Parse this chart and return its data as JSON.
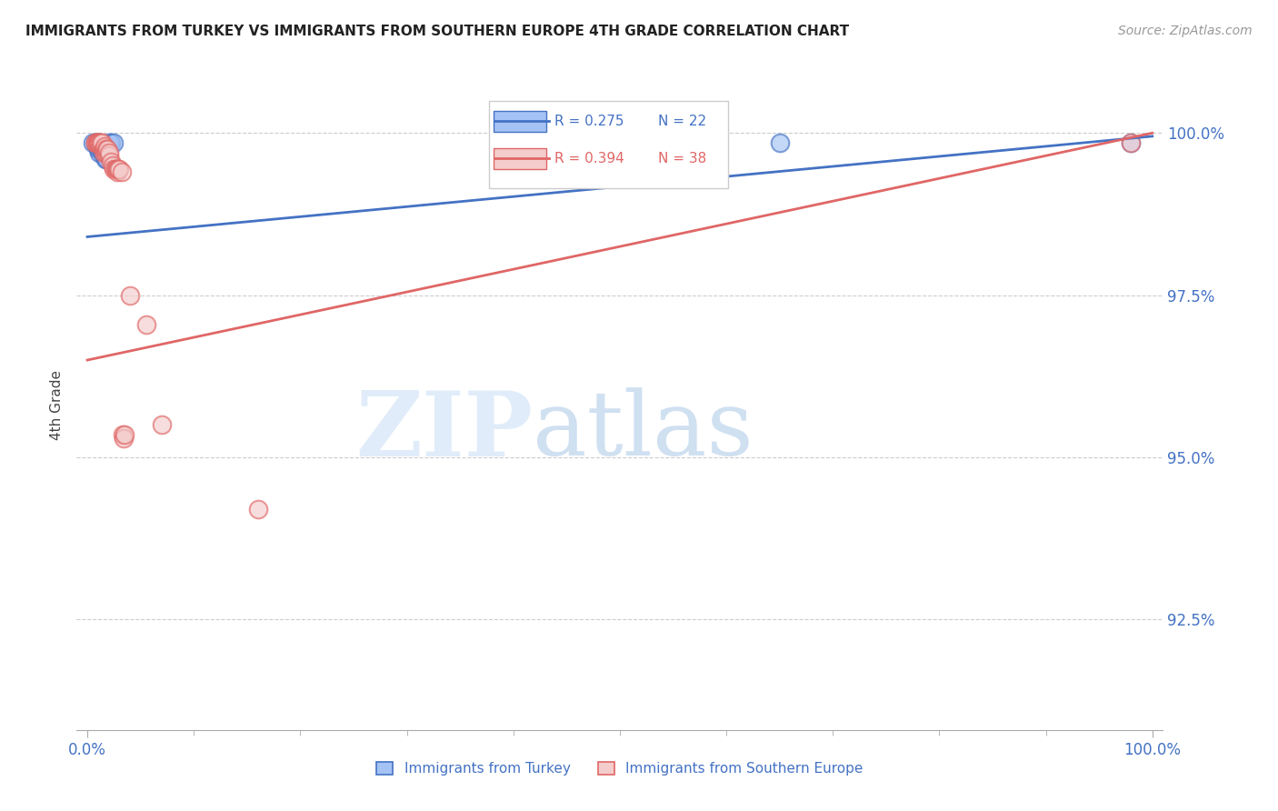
{
  "title": "IMMIGRANTS FROM TURKEY VS IMMIGRANTS FROM SOUTHERN EUROPE 4TH GRADE CORRELATION CHART",
  "source": "Source: ZipAtlas.com",
  "ylabel": "4th Grade",
  "x_tick_labels": [
    "0.0%",
    "100.0%"
  ],
  "y_tick_labels": [
    "92.5%",
    "95.0%",
    "97.5%",
    "100.0%"
  ],
  "y_ticks": [
    0.925,
    0.95,
    0.975,
    1.0
  ],
  "y_min": 0.908,
  "y_max": 1.008,
  "x_min": -0.01,
  "x_max": 1.01,
  "legend_r_blue": "R = 0.275",
  "legend_n_blue": "N = 22",
  "legend_r_pink": "R = 0.394",
  "legend_n_pink": "N = 38",
  "color_blue_fill": "#a4c2f4",
  "color_pink_fill": "#f4cccc",
  "color_blue_edge": "#4472c4",
  "color_pink_edge": "#e06666",
  "color_blue_line": "#4472c4",
  "color_pink_line": "#e06666",
  "color_axis_labels": "#4472c4",
  "blue_points_x": [
    0.005,
    0.008,
    0.009,
    0.009,
    0.01,
    0.01,
    0.011,
    0.011,
    0.012,
    0.012,
    0.013,
    0.014,
    0.015,
    0.016,
    0.016,
    0.017,
    0.018,
    0.02,
    0.022,
    0.025,
    0.65,
    0.98
  ],
  "blue_points_y": [
    0.9985,
    0.9985,
    0.9985,
    0.9985,
    0.9975,
    0.998,
    0.997,
    0.9975,
    0.998,
    0.9985,
    0.9975,
    0.9975,
    0.9965,
    0.9975,
    0.997,
    0.996,
    0.996,
    0.9985,
    0.9985,
    0.9985,
    0.9985,
    0.9985
  ],
  "pink_points_x": [
    0.008,
    0.008,
    0.009,
    0.009,
    0.01,
    0.01,
    0.011,
    0.012,
    0.013,
    0.014,
    0.015,
    0.015,
    0.016,
    0.016,
    0.017,
    0.018,
    0.018,
    0.019,
    0.02,
    0.02,
    0.022,
    0.024,
    0.025,
    0.026,
    0.027,
    0.028,
    0.028,
    0.029,
    0.03,
    0.032,
    0.033,
    0.034,
    0.035,
    0.04,
    0.055,
    0.07,
    0.16,
    0.98
  ],
  "pink_points_y": [
    0.9985,
    0.9985,
    0.9985,
    0.9985,
    0.9985,
    0.9985,
    0.9985,
    0.9985,
    0.9985,
    0.9985,
    0.997,
    0.9975,
    0.9975,
    0.998,
    0.997,
    0.997,
    0.9975,
    0.9975,
    0.9965,
    0.997,
    0.9955,
    0.995,
    0.9945,
    0.9945,
    0.9945,
    0.994,
    0.9945,
    0.9945,
    0.9945,
    0.994,
    0.9535,
    0.953,
    0.9535,
    0.975,
    0.9705,
    0.955,
    0.942,
    0.9985
  ],
  "blue_line_x": [
    0.0,
    1.0
  ],
  "blue_line_y": [
    0.984,
    0.9995
  ],
  "pink_line_x": [
    0.0,
    1.0
  ],
  "pink_line_y": [
    0.965,
    1.0
  ]
}
